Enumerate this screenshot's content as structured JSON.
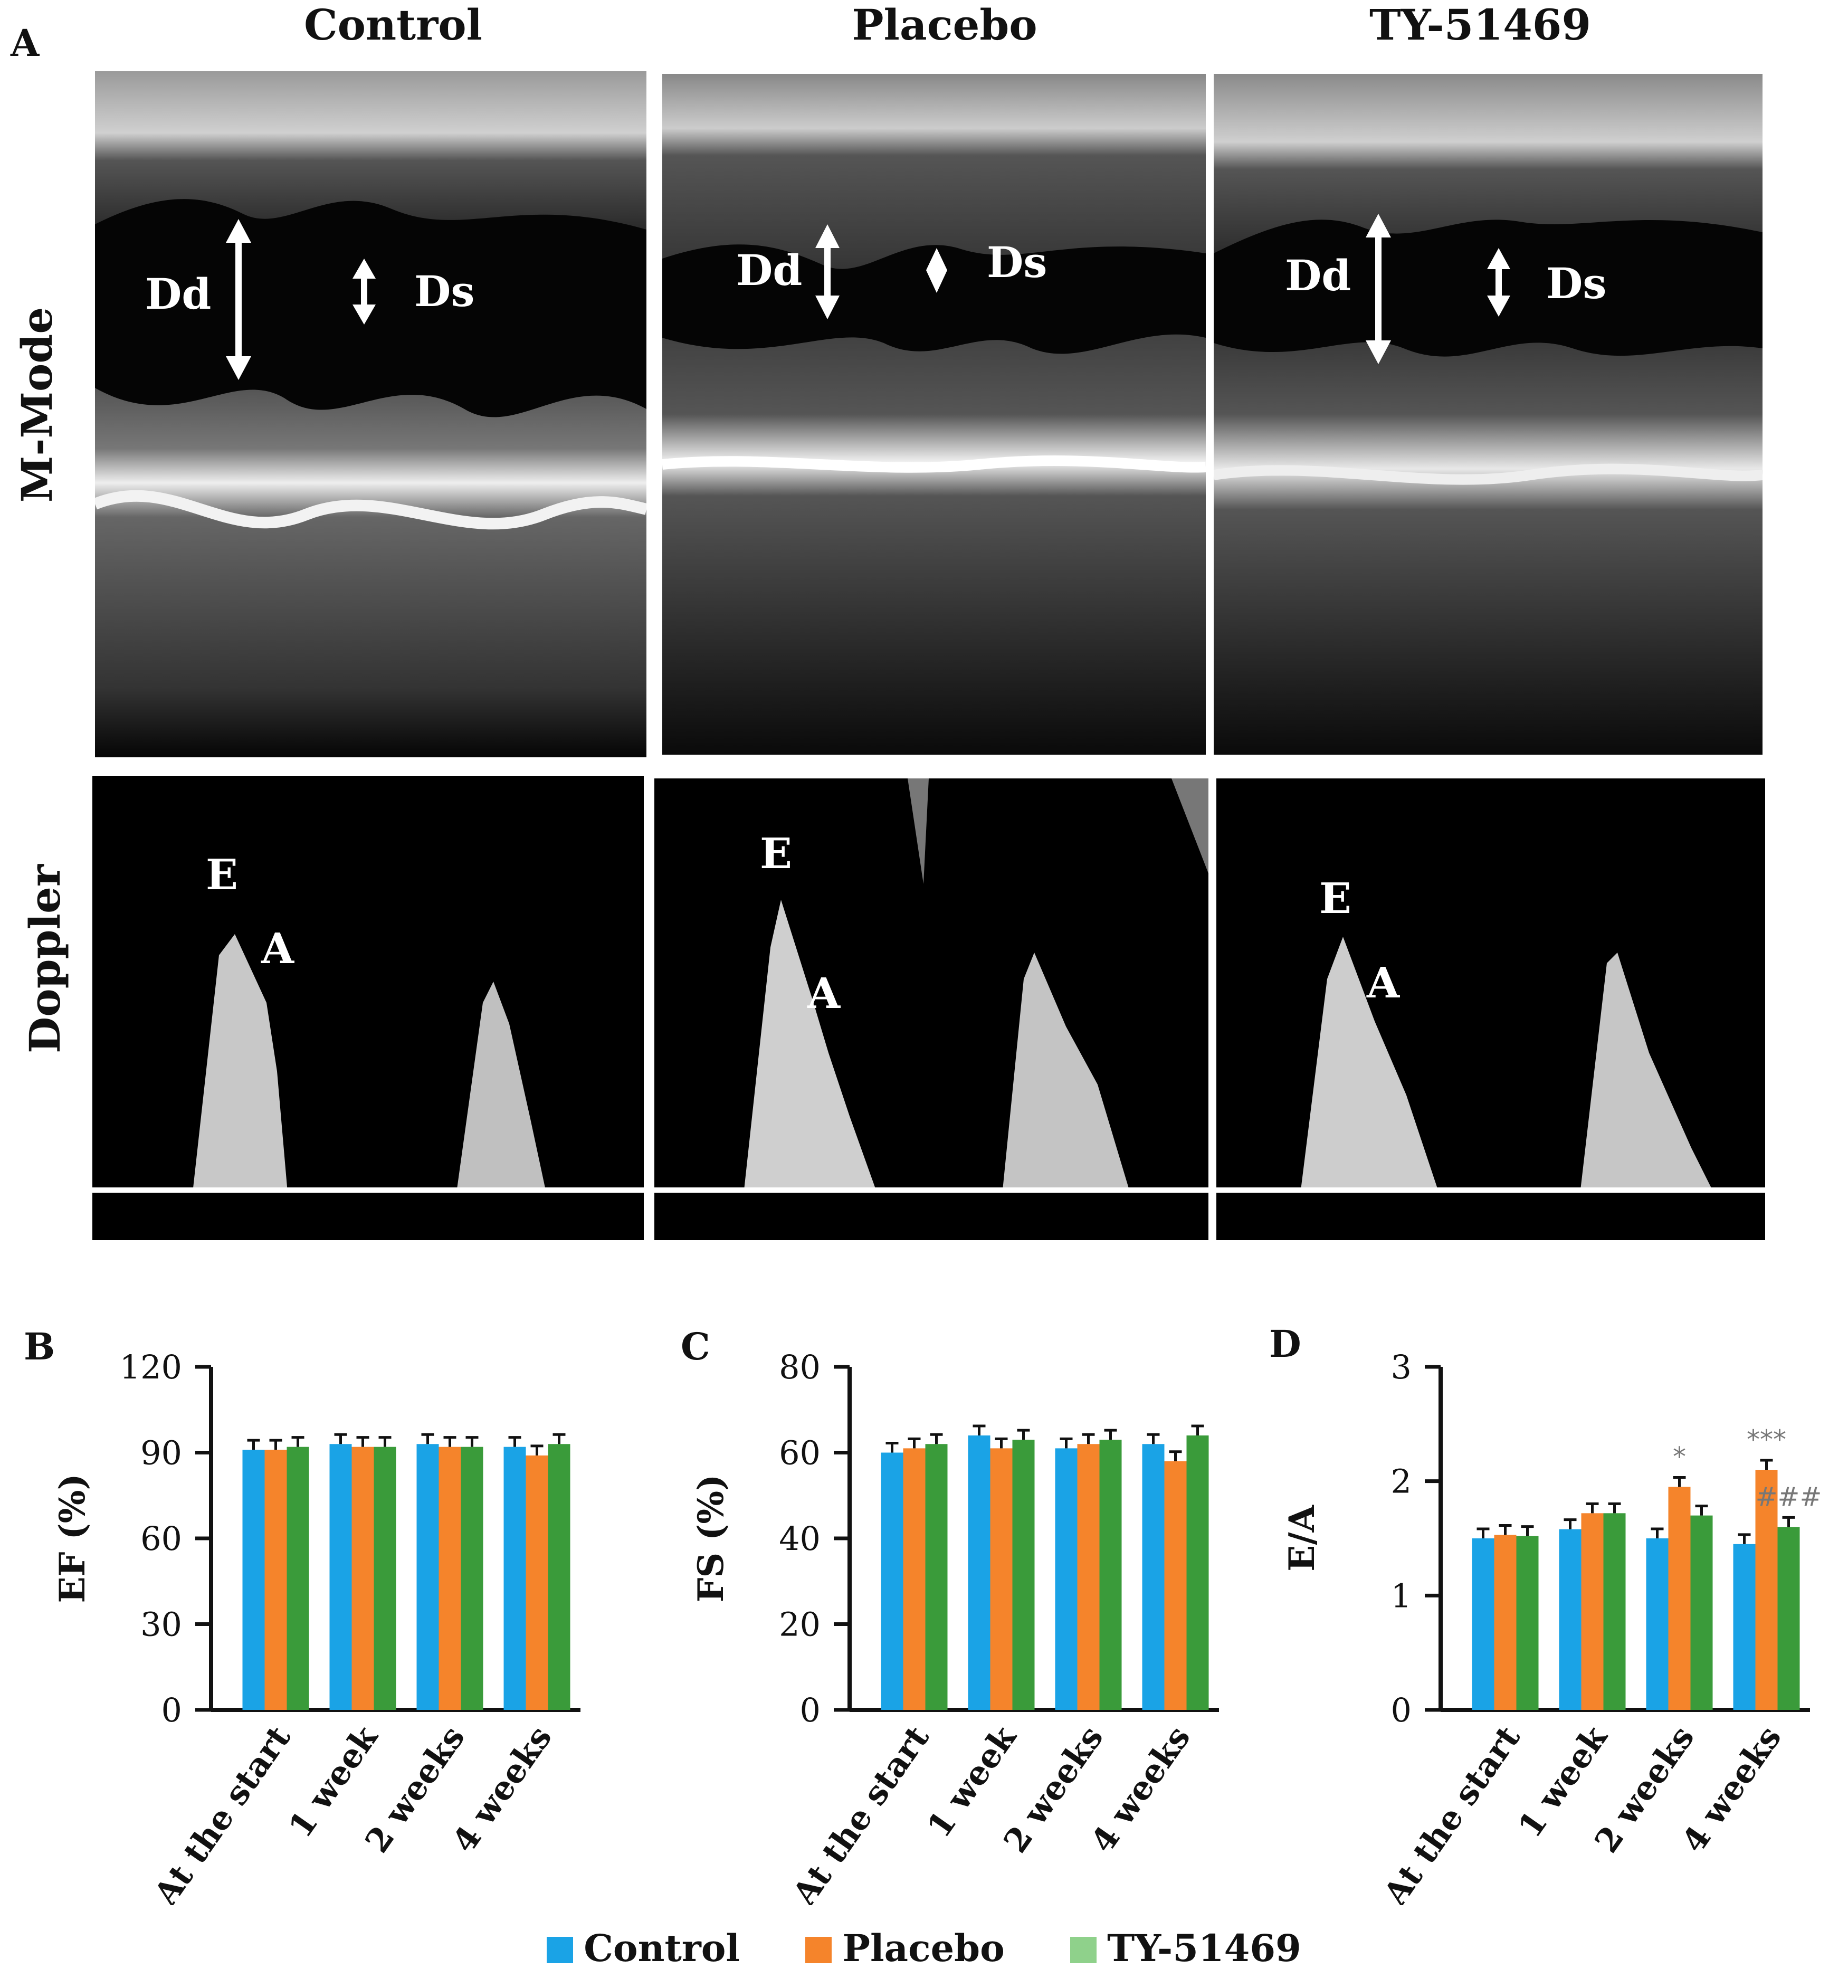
{
  "panel_labels": {
    "a": "A",
    "b": "B",
    "c": "C",
    "d": "D"
  },
  "column_titles": [
    "Control",
    "Placebo",
    "TY-51469"
  ],
  "row_labels": {
    "mmode": "M-Mode",
    "doppler": "Doppler"
  },
  "mmode_markers": {
    "dd": "Dd",
    "ds": "Ds"
  },
  "doppler_markers": {
    "e": "E",
    "a": "A"
  },
  "colors": {
    "control": "#1aa3e6",
    "placebo": "#f5842b",
    "ty51469": "#3a9b3a",
    "legend_ty51469": "#8fd18b"
  },
  "legend": [
    {
      "label": "Control",
      "color": "#1aa3e6"
    },
    {
      "label": "Placebo",
      "color": "#f5842b"
    },
    {
      "label": "TY-51469",
      "color": "#8fd18b"
    }
  ],
  "chart_data": [
    {
      "type": "bar",
      "title": "B",
      "ylabel": "EF (%)",
      "categories": [
        "At the start",
        "1 week",
        "2 weeks",
        "4 weeks"
      ],
      "yticks": [
        0,
        30,
        60,
        90,
        120
      ],
      "ylim": [
        0,
        120
      ],
      "series": [
        {
          "name": "Control",
          "values": [
            91,
            93,
            93,
            92
          ]
        },
        {
          "name": "Placebo",
          "values": [
            91,
            92,
            92,
            89
          ]
        },
        {
          "name": "TY-51469",
          "values": [
            92,
            92,
            92,
            93
          ]
        }
      ],
      "annotations": []
    },
    {
      "type": "bar",
      "title": "C",
      "ylabel": "FS (%)",
      "categories": [
        "At the start",
        "1 week",
        "2 weeks",
        "4 weeks"
      ],
      "yticks": [
        0,
        20,
        40,
        60,
        80
      ],
      "ylim": [
        0,
        80
      ],
      "series": [
        {
          "name": "Control",
          "values": [
            60,
            64,
            61,
            62
          ]
        },
        {
          "name": "Placebo",
          "values": [
            61,
            61,
            62,
            58
          ]
        },
        {
          "name": "TY-51469",
          "values": [
            62,
            63,
            63,
            64
          ]
        }
      ],
      "annotations": []
    },
    {
      "type": "bar",
      "title": "D",
      "ylabel": "E/A",
      "categories": [
        "At the start",
        "1 week",
        "2 weeks",
        "4 weeks"
      ],
      "yticks": [
        0,
        1,
        2,
        3
      ],
      "ylim": [
        0,
        3
      ],
      "series": [
        {
          "name": "Control",
          "values": [
            1.5,
            1.58,
            1.5,
            1.45
          ]
        },
        {
          "name": "Placebo",
          "values": [
            1.53,
            1.72,
            1.95,
            2.1
          ]
        },
        {
          "name": "TY-51469",
          "values": [
            1.52,
            1.72,
            1.7,
            1.6
          ]
        }
      ],
      "annotations": [
        {
          "category": "2 weeks",
          "series": "Placebo",
          "text": "*"
        },
        {
          "category": "4 weeks",
          "series": "Placebo",
          "text": "***"
        },
        {
          "category": "4 weeks",
          "series": "TY-51469",
          "text": "###"
        }
      ]
    }
  ]
}
